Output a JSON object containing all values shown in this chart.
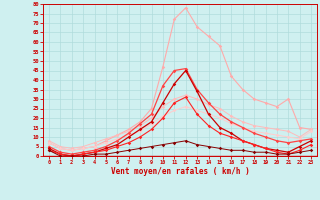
{
  "x": [
    0,
    1,
    2,
    3,
    4,
    5,
    6,
    7,
    8,
    9,
    10,
    11,
    12,
    13,
    14,
    15,
    16,
    17,
    18,
    19,
    20,
    21,
    22,
    23
  ],
  "series": [
    {
      "name": "rafales_max",
      "color": "#ffaaaa",
      "lw": 0.8,
      "values": [
        7,
        4,
        3,
        4,
        5,
        8,
        11,
        14,
        18,
        25,
        47,
        72,
        78,
        68,
        63,
        58,
        42,
        35,
        30,
        28,
        26,
        30,
        15,
        14
      ]
    },
    {
      "name": "vent_line1",
      "color": "#ffbbbb",
      "lw": 0.7,
      "values": [
        8,
        5,
        4,
        5,
        7,
        9,
        11,
        13,
        16,
        20,
        26,
        30,
        32,
        30,
        27,
        25,
        21,
        18,
        16,
        15,
        14,
        13,
        10,
        14
      ]
    },
    {
      "name": "vent_line2",
      "color": "#ffcccc",
      "lw": 0.7,
      "values": [
        7,
        4,
        3,
        4,
        5,
        7,
        9,
        11,
        13,
        17,
        21,
        24,
        26,
        24,
        22,
        20,
        17,
        15,
        13,
        12,
        11,
        10,
        9,
        13
      ]
    },
    {
      "name": "vent_med",
      "color": "#ff4444",
      "lw": 0.9,
      "values": [
        5,
        2,
        1,
        2,
        3,
        5,
        8,
        12,
        17,
        22,
        37,
        45,
        46,
        35,
        28,
        22,
        18,
        15,
        12,
        10,
        8,
        7,
        8,
        9
      ]
    },
    {
      "name": "vent_dark1",
      "color": "#cc0000",
      "lw": 0.9,
      "values": [
        4,
        1,
        0,
        1,
        2,
        4,
        6,
        10,
        14,
        18,
        28,
        38,
        45,
        34,
        22,
        15,
        12,
        8,
        6,
        4,
        3,
        2,
        5,
        8
      ]
    },
    {
      "name": "vent_dark2",
      "color": "#ff2222",
      "lw": 0.8,
      "values": [
        3,
        1,
        0,
        1,
        2,
        3,
        5,
        7,
        10,
        14,
        20,
        28,
        31,
        22,
        16,
        12,
        10,
        8,
        6,
        4,
        2,
        1,
        3,
        6
      ]
    },
    {
      "name": "vent_low",
      "color": "#880000",
      "lw": 0.7,
      "values": [
        3,
        0,
        0,
        0,
        1,
        1,
        2,
        3,
        4,
        5,
        6,
        7,
        8,
        6,
        5,
        4,
        3,
        3,
        2,
        2,
        1,
        1,
        2,
        3
      ]
    }
  ],
  "yticks": [
    0,
    5,
    10,
    15,
    20,
    25,
    30,
    35,
    40,
    45,
    50,
    55,
    60,
    65,
    70,
    75,
    80
  ],
  "xticks": [
    0,
    1,
    2,
    3,
    4,
    5,
    6,
    7,
    8,
    9,
    10,
    11,
    12,
    13,
    14,
    15,
    16,
    17,
    18,
    19,
    20,
    21,
    22,
    23
  ],
  "xlabel": "Vent moyen/en rafales ( km/h )",
  "ylim": [
    0,
    80
  ],
  "xlim": [
    -0.5,
    23.5
  ],
  "bg_color": "#cff0f0",
  "grid_color": "#aadddd",
  "axis_color": "#cc0000",
  "label_color": "#cc0000"
}
